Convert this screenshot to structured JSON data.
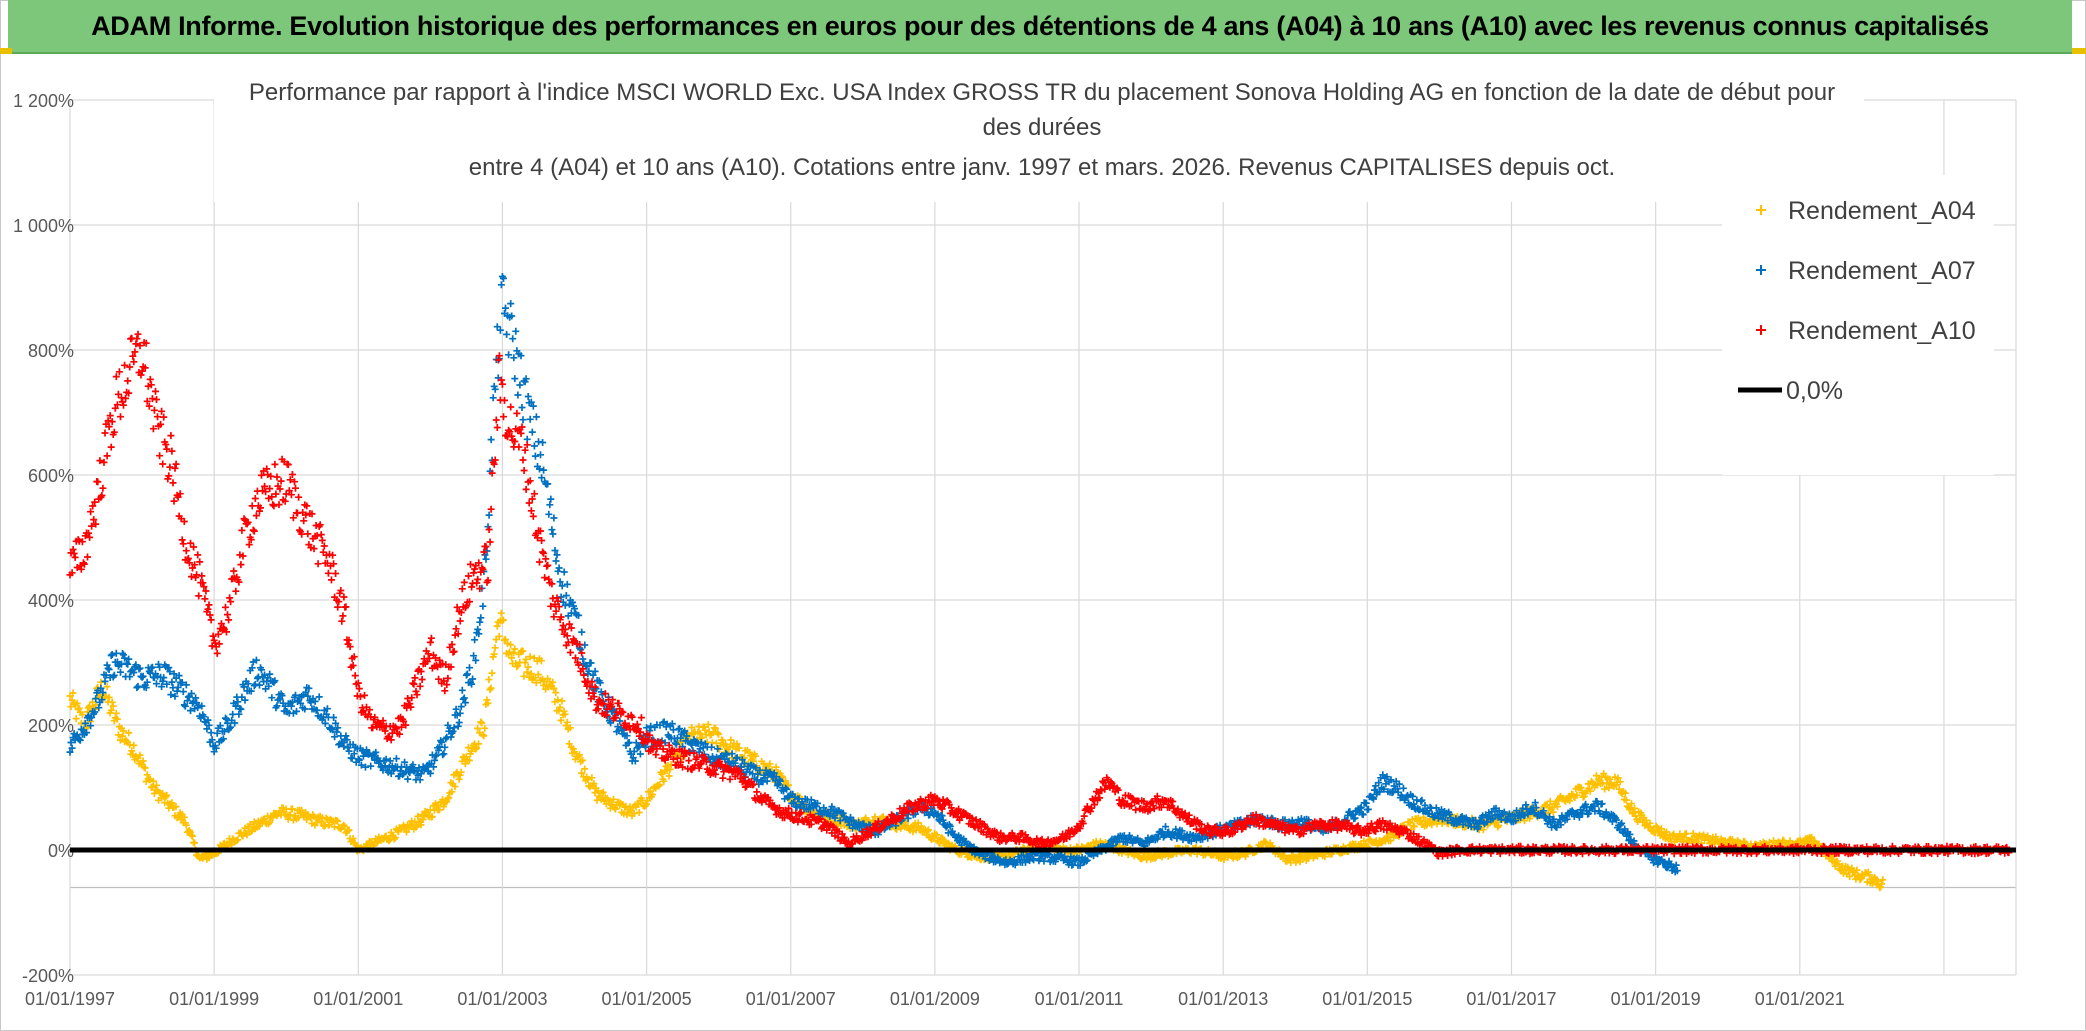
{
  "banner": {
    "title": "ADAM Informe. Evolution historique des performances en euros pour des détentions de 4 ans (A04) à 10 ans (A10) avec les revenus connus capitalisés"
  },
  "chart_data": {
    "type": "scatter",
    "title_lines": [
      "Performance par rapport à l'indice MSCI WORLD Exc. USA Index GROSS TR  du placement Sonova Holding AG en fonction de la date de début pour",
      "des durées",
      "entre 4 (A04) et 10 ans (A10). Cotations entre janv. 1997 et mars. 2026. Revenus CAPITALISES depuis oct."
    ],
    "xlabel": "",
    "ylabel": "",
    "xlim": [
      1997.0,
      2024.0
    ],
    "ylim": [
      -200,
      1200
    ],
    "y_ticks": [
      {
        "value": 1200,
        "label": "1 200%"
      },
      {
        "value": 1000,
        "label": "1 000%"
      },
      {
        "value": 800,
        "label": "800%"
      },
      {
        "value": 600,
        "label": "600%"
      },
      {
        "value": 400,
        "label": "400%"
      },
      {
        "value": 200,
        "label": "200%"
      },
      {
        "value": 0,
        "label": "0%"
      },
      {
        "value": -200,
        "label": "-200%"
      }
    ],
    "x_ticks": [
      {
        "value": 1997,
        "label": "01/01/1997"
      },
      {
        "value": 1999,
        "label": "01/01/1999"
      },
      {
        "value": 2001,
        "label": "01/01/2001"
      },
      {
        "value": 2003,
        "label": "01/01/2003"
      },
      {
        "value": 2005,
        "label": "01/01/2005"
      },
      {
        "value": 2007,
        "label": "01/01/2007"
      },
      {
        "value": 2009,
        "label": "01/01/2009"
      },
      {
        "value": 2011,
        "label": "01/01/2011"
      },
      {
        "value": 2013,
        "label": "01/01/2013"
      },
      {
        "value": 2015,
        "label": "01/01/2015"
      },
      {
        "value": 2017,
        "label": "01/01/2017"
      },
      {
        "value": 2019,
        "label": "01/01/2019"
      },
      {
        "value": 2021,
        "label": "01/01/2021"
      }
    ],
    "extra_gridlines_x": [
      2023
    ],
    "extra_gridlines_y": [
      -60
    ],
    "legend_position": "top-right",
    "series": [
      {
        "name": "Rendement_A04",
        "color": "#ffc000",
        "points": [
          [
            1997.0,
            240
          ],
          [
            1997.2,
            200
          ],
          [
            1997.45,
            260
          ],
          [
            1997.7,
            190
          ],
          [
            1997.9,
            160
          ],
          [
            1998.15,
            100
          ],
          [
            1998.4,
            70
          ],
          [
            1998.6,
            45
          ],
          [
            1998.8,
            -15
          ],
          [
            1999.0,
            -5
          ],
          [
            1999.3,
            20
          ],
          [
            1999.6,
            40
          ],
          [
            1999.9,
            60
          ],
          [
            2000.2,
            55
          ],
          [
            2000.5,
            45
          ],
          [
            2000.8,
            40
          ],
          [
            2001.0,
            0
          ],
          [
            2001.3,
            15
          ],
          [
            2001.6,
            30
          ],
          [
            2001.9,
            50
          ],
          [
            2002.2,
            80
          ],
          [
            2002.5,
            150
          ],
          [
            2002.75,
            200
          ],
          [
            2002.95,
            370
          ],
          [
            2003.15,
            300
          ],
          [
            2003.5,
            290
          ],
          [
            2003.8,
            230
          ],
          [
            2004.0,
            160
          ],
          [
            2004.3,
            90
          ],
          [
            2004.6,
            70
          ],
          [
            2004.8,
            60
          ],
          [
            2005.0,
            80
          ],
          [
            2005.3,
            130
          ],
          [
            2005.6,
            180
          ],
          [
            2005.9,
            185
          ],
          [
            2006.2,
            160
          ],
          [
            2006.5,
            140
          ],
          [
            2006.8,
            120
          ],
          [
            2007.0,
            90
          ],
          [
            2007.3,
            60
          ],
          [
            2007.6,
            50
          ],
          [
            2007.9,
            40
          ],
          [
            2008.2,
            50
          ],
          [
            2008.5,
            40
          ],
          [
            2008.8,
            35
          ],
          [
            2009.0,
            20
          ],
          [
            2009.3,
            0
          ],
          [
            2009.6,
            -10
          ],
          [
            2010.0,
            -10
          ],
          [
            2010.4,
            5
          ],
          [
            2010.8,
            0
          ],
          [
            2011.0,
            0
          ],
          [
            2011.3,
            10
          ],
          [
            2011.6,
            0
          ],
          [
            2011.9,
            -10
          ],
          [
            2012.2,
            -5
          ],
          [
            2012.6,
            0
          ],
          [
            2013.0,
            -10
          ],
          [
            2013.3,
            -5
          ],
          [
            2013.6,
            10
          ],
          [
            2013.9,
            -15
          ],
          [
            2014.2,
            -10
          ],
          [
            2014.6,
            0
          ],
          [
            2015.0,
            10
          ],
          [
            2015.3,
            20
          ],
          [
            2015.6,
            40
          ],
          [
            2016.0,
            50
          ],
          [
            2016.3,
            45
          ],
          [
            2016.6,
            40
          ],
          [
            2017.0,
            50
          ],
          [
            2017.3,
            60
          ],
          [
            2017.6,
            70
          ],
          [
            2017.9,
            90
          ],
          [
            2018.2,
            110
          ],
          [
            2018.45,
            110
          ],
          [
            2018.7,
            60
          ],
          [
            2018.9,
            40
          ],
          [
            2019.2,
            20
          ],
          [
            2019.5,
            20
          ],
          [
            2019.8,
            15
          ],
          [
            2020.1,
            10
          ],
          [
            2020.4,
            5
          ],
          [
            2020.7,
            10
          ],
          [
            2021.0,
            10
          ],
          [
            2021.2,
            15
          ],
          [
            2021.4,
            -10
          ],
          [
            2021.6,
            -30
          ],
          [
            2021.8,
            -40
          ],
          [
            2022.0,
            -45
          ],
          [
            2022.15,
            -55
          ]
        ]
      },
      {
        "name": "Rendement_A07",
        "color": "#0070c0",
        "points": [
          [
            1997.0,
            165
          ],
          [
            1997.2,
            200
          ],
          [
            1997.4,
            240
          ],
          [
            1997.6,
            300
          ],
          [
            1997.8,
            290
          ],
          [
            1998.0,
            275
          ],
          [
            1998.3,
            280
          ],
          [
            1998.6,
            250
          ],
          [
            1998.8,
            230
          ],
          [
            1999.0,
            170
          ],
          [
            1999.2,
            200
          ],
          [
            1999.4,
            250
          ],
          [
            1999.6,
            290
          ],
          [
            1999.8,
            260
          ],
          [
            2000.0,
            220
          ],
          [
            2000.3,
            250
          ],
          [
            2000.6,
            210
          ],
          [
            2000.8,
            170
          ],
          [
            2001.0,
            150
          ],
          [
            2001.3,
            140
          ],
          [
            2001.6,
            130
          ],
          [
            2001.9,
            120
          ],
          [
            2002.1,
            150
          ],
          [
            2002.4,
            220
          ],
          [
            2002.6,
            300
          ],
          [
            2002.75,
            430
          ],
          [
            2002.9,
            750
          ],
          [
            2003.0,
            870
          ],
          [
            2003.15,
            810
          ],
          [
            2003.35,
            700
          ],
          [
            2003.55,
            620
          ],
          [
            2003.8,
            440
          ],
          [
            2004.0,
            370
          ],
          [
            2004.3,
            260
          ],
          [
            2004.6,
            200
          ],
          [
            2004.8,
            150
          ],
          [
            2005.0,
            180
          ],
          [
            2005.3,
            190
          ],
          [
            2005.6,
            170
          ],
          [
            2005.9,
            150
          ],
          [
            2006.2,
            140
          ],
          [
            2006.5,
            120
          ],
          [
            2006.8,
            110
          ],
          [
            2007.0,
            80
          ],
          [
            2007.3,
            70
          ],
          [
            2007.6,
            60
          ],
          [
            2007.9,
            40
          ],
          [
            2008.2,
            30
          ],
          [
            2008.5,
            50
          ],
          [
            2008.8,
            70
          ],
          [
            2009.0,
            60
          ],
          [
            2009.3,
            20
          ],
          [
            2009.6,
            -5
          ],
          [
            2010.0,
            -20
          ],
          [
            2010.4,
            -10
          ],
          [
            2010.8,
            -15
          ],
          [
            2011.0,
            -20
          ],
          [
            2011.3,
            0
          ],
          [
            2011.6,
            20
          ],
          [
            2011.9,
            10
          ],
          [
            2012.2,
            30
          ],
          [
            2012.6,
            20
          ],
          [
            2012.9,
            30
          ],
          [
            2013.2,
            40
          ],
          [
            2013.5,
            50
          ],
          [
            2013.8,
            40
          ],
          [
            2014.1,
            45
          ],
          [
            2014.4,
            30
          ],
          [
            2014.7,
            50
          ],
          [
            2015.0,
            70
          ],
          [
            2015.2,
            110
          ],
          [
            2015.4,
            100
          ],
          [
            2015.6,
            80
          ],
          [
            2015.9,
            60
          ],
          [
            2016.2,
            50
          ],
          [
            2016.5,
            40
          ],
          [
            2016.8,
            60
          ],
          [
            2017.0,
            50
          ],
          [
            2017.3,
            70
          ],
          [
            2017.6,
            40
          ],
          [
            2017.9,
            60
          ],
          [
            2018.2,
            70
          ],
          [
            2018.5,
            40
          ],
          [
            2018.7,
            10
          ],
          [
            2018.9,
            -10
          ],
          [
            2019.1,
            -20
          ],
          [
            2019.3,
            -30
          ]
        ]
      },
      {
        "name": "Rendement_A10",
        "color": "#ff0000",
        "points": [
          [
            1997.0,
            450
          ],
          [
            1997.2,
            480
          ],
          [
            1997.4,
            580
          ],
          [
            1997.6,
            700
          ],
          [
            1997.8,
            760
          ],
          [
            1998.0,
            800
          ],
          [
            1998.2,
            680
          ],
          [
            1998.4,
            620
          ],
          [
            1998.6,
            500
          ],
          [
            1998.8,
            430
          ],
          [
            1999.0,
            330
          ],
          [
            1999.2,
            380
          ],
          [
            1999.4,
            490
          ],
          [
            1999.6,
            560
          ],
          [
            1999.8,
            580
          ],
          [
            2000.0,
            590
          ],
          [
            2000.3,
            520
          ],
          [
            2000.6,
            460
          ],
          [
            2000.8,
            380
          ],
          [
            2001.0,
            250
          ],
          [
            2001.2,
            200
          ],
          [
            2001.4,
            190
          ],
          [
            2001.6,
            200
          ],
          [
            2001.8,
            260
          ],
          [
            2002.0,
            320
          ],
          [
            2002.2,
            270
          ],
          [
            2002.4,
            380
          ],
          [
            2002.6,
            440
          ],
          [
            2002.8,
            460
          ],
          [
            2002.95,
            750
          ],
          [
            2003.1,
            680
          ],
          [
            2003.3,
            640
          ],
          [
            2003.5,
            500
          ],
          [
            2003.7,
            400
          ],
          [
            2003.9,
            350
          ],
          [
            2004.1,
            300
          ],
          [
            2004.3,
            240
          ],
          [
            2004.6,
            220
          ],
          [
            2004.9,
            200
          ],
          [
            2005.1,
            160
          ],
          [
            2005.4,
            150
          ],
          [
            2005.7,
            140
          ],
          [
            2006.0,
            130
          ],
          [
            2006.3,
            120
          ],
          [
            2006.6,
            80
          ],
          [
            2006.9,
            60
          ],
          [
            2007.2,
            50
          ],
          [
            2007.5,
            40
          ],
          [
            2007.8,
            10
          ],
          [
            2008.1,
            30
          ],
          [
            2008.4,
            50
          ],
          [
            2008.7,
            70
          ],
          [
            2009.0,
            80
          ],
          [
            2009.3,
            60
          ],
          [
            2009.6,
            40
          ],
          [
            2009.9,
            20
          ],
          [
            2010.2,
            20
          ],
          [
            2010.5,
            10
          ],
          [
            2010.8,
            20
          ],
          [
            2011.0,
            40
          ],
          [
            2011.2,
            80
          ],
          [
            2011.4,
            110
          ],
          [
            2011.6,
            80
          ],
          [
            2011.9,
            70
          ],
          [
            2012.2,
            80
          ],
          [
            2012.5,
            50
          ],
          [
            2012.8,
            30
          ],
          [
            2013.1,
            30
          ],
          [
            2013.4,
            50
          ],
          [
            2013.7,
            40
          ],
          [
            2014.0,
            30
          ],
          [
            2014.3,
            40
          ],
          [
            2014.6,
            40
          ],
          [
            2014.9,
            30
          ],
          [
            2015.2,
            40
          ],
          [
            2015.5,
            30
          ],
          [
            2015.8,
            10
          ],
          [
            2016.0,
            -5
          ],
          [
            2016.3,
            0
          ],
          [
            2016.8,
            0
          ],
          [
            2017.5,
            0
          ],
          [
            2018.2,
            0
          ],
          [
            2019.0,
            0
          ],
          [
            2019.8,
            0
          ],
          [
            2020.6,
            0
          ],
          [
            2021.4,
            0
          ],
          [
            2022.2,
            0
          ],
          [
            2023.0,
            0
          ],
          [
            2023.9,
            0
          ]
        ]
      }
    ],
    "zero_line": {
      "name": "0,0%",
      "value": 0,
      "color": "#000000"
    }
  }
}
